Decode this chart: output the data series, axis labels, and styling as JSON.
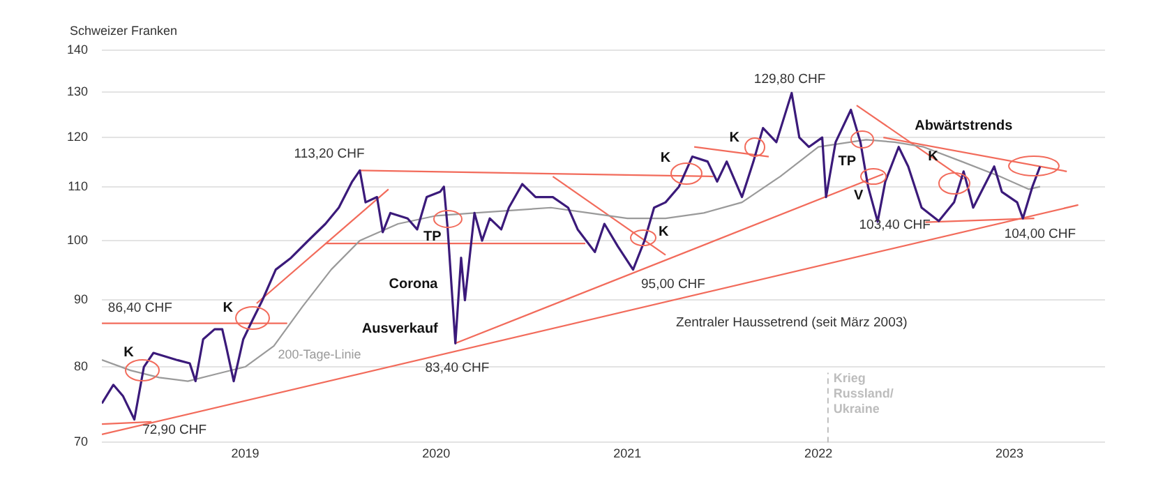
{
  "chart_data": {
    "type": "line",
    "ylabel": "Schweizer Franken",
    "xlim": [
      2018.25,
      2023.5
    ],
    "xticks": [
      2019,
      2020,
      2021,
      2022,
      2023
    ],
    "ylim": [
      70,
      140
    ],
    "yticks": [
      70,
      80,
      90,
      100,
      110,
      120,
      130,
      140
    ],
    "log": true,
    "grid": "y",
    "legend": false,
    "marker": "none",
    "series": [
      {
        "color": "#3b1a7a",
        "x": [
          2018.25,
          2018.31,
          2018.36,
          2018.42,
          2018.47,
          2018.52,
          2018.58,
          2018.64,
          2018.71,
          2018.74,
          2018.78,
          2018.84,
          2018.88,
          2018.9,
          2018.94,
          2018.99,
          2019.04,
          2019.09,
          2019.16,
          2019.24,
          2019.33,
          2019.42,
          2019.49,
          2019.56,
          2019.6,
          2019.63,
          2019.69,
          2019.72,
          2019.76,
          2019.85,
          2019.9,
          2019.95,
          2020.02,
          2020.04,
          2020.06,
          2020.1,
          2020.13,
          2020.15,
          2020.2,
          2020.24,
          2020.28,
          2020.34,
          2020.38,
          2020.45,
          2020.52,
          2020.61,
          2020.69,
          2020.74,
          2020.83,
          2020.88,
          2020.95,
          2021.03,
          2021.09,
          2021.14,
          2021.2,
          2021.27,
          2021.34,
          2021.42,
          2021.47,
          2021.52,
          2021.6,
          2021.66,
          2021.71,
          2021.78,
          2021.86,
          2021.9,
          2021.95,
          2022.02,
          2022.04,
          2022.09,
          2022.17,
          2022.22,
          2022.26,
          2022.31,
          2022.35,
          2022.42,
          2022.47,
          2022.54,
          2022.63,
          2022.71,
          2022.76,
          2022.81,
          2022.92,
          2022.96,
          2023.04,
          2023.07,
          2023.12,
          2023.16
        ],
        "values": [
          75,
          77.5,
          76,
          72.9,
          80,
          82,
          81.5,
          81,
          80.5,
          78,
          84,
          85.5,
          85.5,
          83,
          78,
          84,
          87,
          90,
          95,
          97,
          100,
          103,
          106,
          111,
          113.2,
          107,
          108,
          101.5,
          105,
          104,
          102,
          108,
          109,
          110,
          102,
          83.4,
          97,
          90,
          105,
          100,
          104,
          102,
          106,
          110.5,
          108,
          108,
          106,
          102,
          98,
          103,
          99,
          95,
          100,
          106,
          107,
          110,
          116,
          115,
          111,
          115,
          108,
          115,
          122,
          119,
          129.8,
          120,
          118,
          120,
          108,
          119,
          126,
          119,
          110,
          103.4,
          111,
          118,
          114,
          106,
          103.5,
          107,
          113,
          106,
          114,
          109,
          107,
          104,
          110,
          114
        ]
      },
      {
        "name": "200-Tage-Linie",
        "color": "#9a9a9a",
        "x": [
          2018.25,
          2018.4,
          2018.55,
          2018.7,
          2018.85,
          2019.0,
          2019.15,
          2019.3,
          2019.45,
          2019.6,
          2019.8,
          2020.0,
          2020.2,
          2020.4,
          2020.6,
          2020.8,
          2021.0,
          2021.2,
          2021.4,
          2021.6,
          2021.8,
          2022.0,
          2022.25,
          2022.4,
          2022.55,
          2022.75,
          2022.95,
          2023.1,
          2023.16
        ],
        "values": [
          81,
          79.5,
          78.5,
          78,
          79,
          80,
          83,
          89,
          95,
          100,
          103,
          104.5,
          105,
          105.5,
          106,
          105,
          104,
          104,
          105,
          107,
          112,
          118,
          119.5,
          119,
          118,
          115,
          112,
          109.5,
          110
        ]
      },
      {
        "color": "#f26b5b",
        "x": [
          2018.25,
          2023.36
        ],
        "values": [
          71,
          106.5
        ]
      },
      {
        "color": "#f26b5b",
        "x": [
          2018.25,
          2018.51
        ],
        "values": [
          72.3,
          72.6
        ]
      },
      {
        "color": "#f26b5b",
        "x": [
          2020.1,
          2022.34
        ],
        "values": [
          83.4,
          112.5
        ]
      },
      {
        "color": "#f26b5b",
        "x": [
          2018.25,
          2019.22
        ],
        "values": [
          86.4,
          86.4
        ]
      },
      {
        "color": "#f26b5b",
        "x": [
          2019.06,
          2019.75
        ],
        "values": [
          89.5,
          109.5
        ]
      },
      {
        "color": "#f26b5b",
        "x": [
          2019.6,
          2021.45
        ],
        "values": [
          113.2,
          112
        ]
      },
      {
        "color": "#f26b5b",
        "x": [
          2019.42,
          2020.78
        ],
        "values": [
          99.5,
          99.5
        ]
      },
      {
        "color": "#f26b5b",
        "x": [
          2020.61,
          2021.2
        ],
        "values": [
          112,
          97.5
        ]
      },
      {
        "color": "#f26b5b",
        "x": [
          2021.35,
          2021.74
        ],
        "values": [
          118,
          116
        ]
      },
      {
        "color": "#f26b5b",
        "x": [
          2022.2,
          2022.76
        ],
        "values": [
          127,
          111.5
        ]
      },
      {
        "color": "#f26b5b",
        "x": [
          2022.34,
          2023.3
        ],
        "values": [
          120,
          113
        ]
      },
      {
        "color": "#f26b5b",
        "x": [
          2022.56,
          2023.13
        ],
        "values": [
          103.3,
          104
        ]
      }
    ],
    "ref_lines": [
      {
        "axis": "x",
        "value": 2022.05,
        "label": "Krieg\nRussland/\nUkraine",
        "color": "#bdbdbd",
        "line_style": "dashed"
      }
    ],
    "annotations": [
      "K",
      "86,40 CHF",
      "72,90 CHF",
      "K",
      "113,20 CHF",
      "TP",
      "Corona",
      "Ausverkauf",
      "83,40 CHF",
      "K",
      "95,00 CHF",
      "K",
      "K",
      "129,80 CHF",
      "TP",
      "V",
      "103,40 CHF",
      "K",
      "Abwärtstrends",
      "104,00 CHF",
      "Zentraler Haussetrend (seit März 2003)"
    ]
  }
}
